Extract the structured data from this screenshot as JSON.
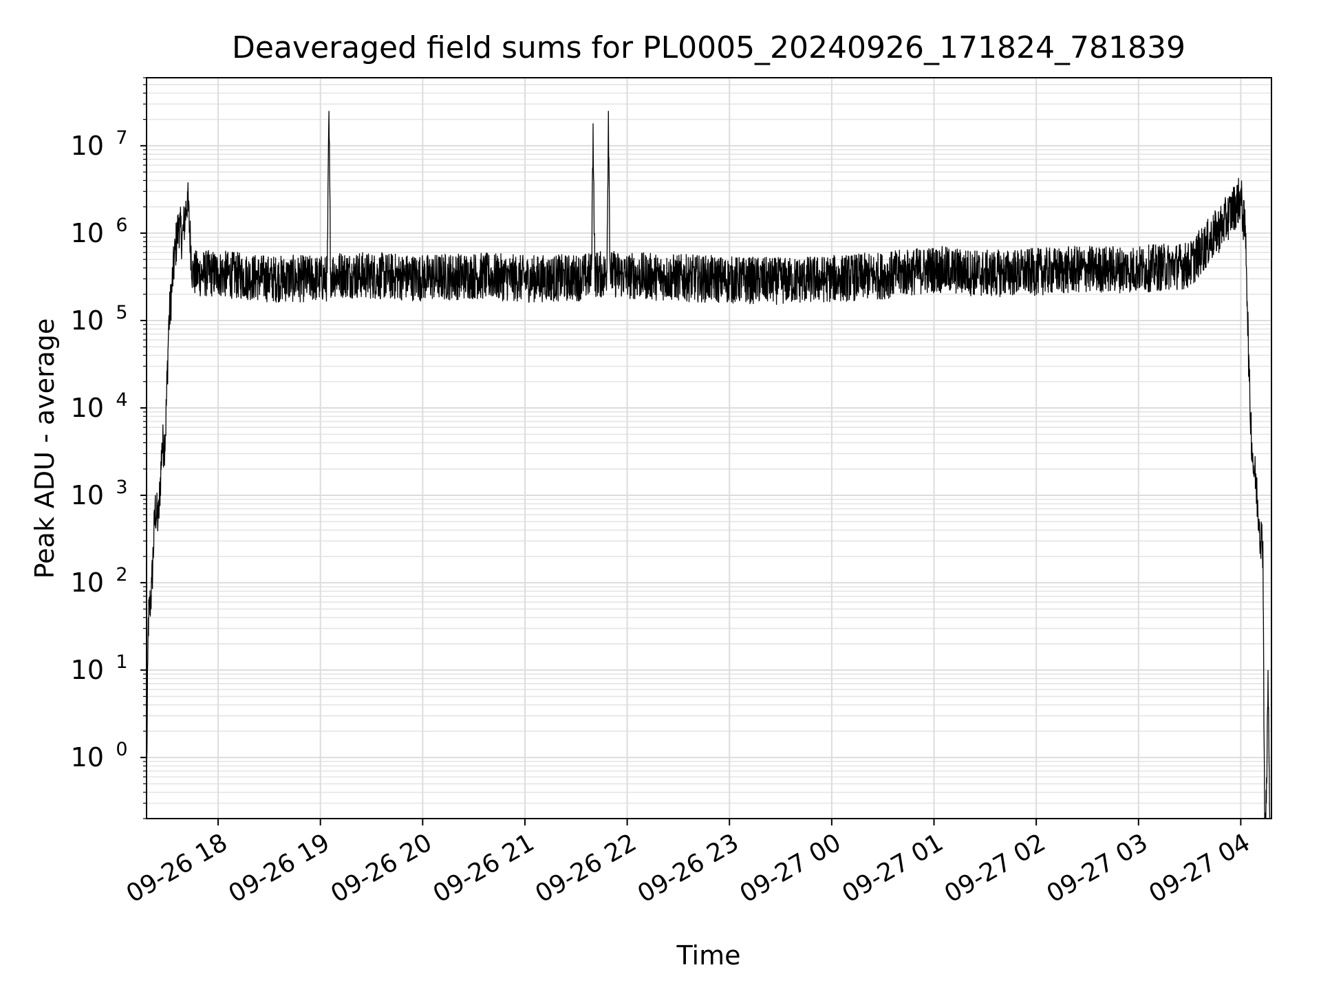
{
  "chart_data": {
    "type": "line",
    "title": "Deaveraged field sums for PL0005_20240926_171824_781839",
    "xlabel": "Time",
    "ylabel": "Peak ADU - average",
    "yscale": "log",
    "grid": "both major and minor",
    "xlim": [
      "2024-09-26 17:18",
      "2024-09-27 04:18"
    ],
    "ylim": [
      0.2,
      60000000
    ],
    "x_ticks": [
      "09-26 18",
      "09-26 19",
      "09-26 20",
      "09-26 21",
      "09-26 22",
      "09-26 23",
      "09-27 00",
      "09-27 01",
      "09-27 02",
      "09-27 03",
      "09-27 04"
    ],
    "y_ticks": [
      {
        "base": "10",
        "exp": "0",
        "value": 1
      },
      {
        "base": "10",
        "exp": "1",
        "value": 10
      },
      {
        "base": "10",
        "exp": "2",
        "value": 100
      },
      {
        "base": "10",
        "exp": "3",
        "value": 1000
      },
      {
        "base": "10",
        "exp": "4",
        "value": 10000
      },
      {
        "base": "10",
        "exp": "5",
        "value": 100000
      },
      {
        "base": "10",
        "exp": "6",
        "value": 1000000
      },
      {
        "base": "10",
        "exp": "7",
        "value": 10000000
      }
    ],
    "line_color": "#000000",
    "series": [
      {
        "x": [
          "2024-09-26 17:18",
          "2024-09-26 17:19",
          "2024-09-26 17:21",
          "2024-09-26 17:23",
          "2024-09-26 17:25",
          "2024-09-26 17:27",
          "2024-09-26 17:29",
          "2024-09-26 17:31",
          "2024-09-26 17:33",
          "2024-09-26 17:35",
          "2024-09-26 17:37",
          "2024-09-26 17:39",
          "2024-09-26 17:42",
          "2024-09-26 17:45",
          "2024-09-26 18:00",
          "2024-09-26 18:30",
          "2024-09-26 19:04",
          "2024-09-26 19:05",
          "2024-09-26 19:06",
          "2024-09-26 19:30",
          "2024-09-26 20:00",
          "2024-09-26 20:30",
          "2024-09-26 21:00",
          "2024-09-26 21:30",
          "2024-09-26 21:39",
          "2024-09-26 21:40",
          "2024-09-26 21:41",
          "2024-09-26 21:48",
          "2024-09-26 21:49",
          "2024-09-26 21:50",
          "2024-09-26 22:00",
          "2024-09-26 22:30",
          "2024-09-26 23:00",
          "2024-09-26 23:30",
          "2024-09-27 00:00",
          "2024-09-27 00:30",
          "2024-09-27 01:00",
          "2024-09-27 01:30",
          "2024-09-27 02:00",
          "2024-09-27 02:30",
          "2024-09-27 03:00",
          "2024-09-27 03:30",
          "2024-09-27 03:50",
          "2024-09-27 04:00",
          "2024-09-27 04:03",
          "2024-09-27 04:05",
          "2024-09-27 04:07",
          "2024-09-27 04:09",
          "2024-09-27 04:11",
          "2024-09-27 04:13",
          "2024-09-27 04:14",
          "2024-09-27 04:15",
          "2024-09-27 04:16",
          "2024-09-27 04:17"
        ],
        "y": [
          0.5,
          40,
          100,
          800,
          600,
          4000,
          5000,
          100000,
          300000,
          800000,
          1500000,
          1000000,
          3000000,
          400000,
          400000,
          350000,
          350000,
          25000000,
          400000,
          380000,
          360000,
          380000,
          350000,
          360000,
          380000,
          18000000,
          400000,
          380000,
          25000000,
          400000,
          380000,
          360000,
          340000,
          330000,
          350000,
          380000,
          450000,
          400000,
          420000,
          450000,
          450000,
          500000,
          1500000,
          3000000,
          1000000,
          20000,
          3000,
          1500,
          500,
          300,
          0.2,
          0.3,
          10,
          0.2
        ]
      }
    ]
  }
}
